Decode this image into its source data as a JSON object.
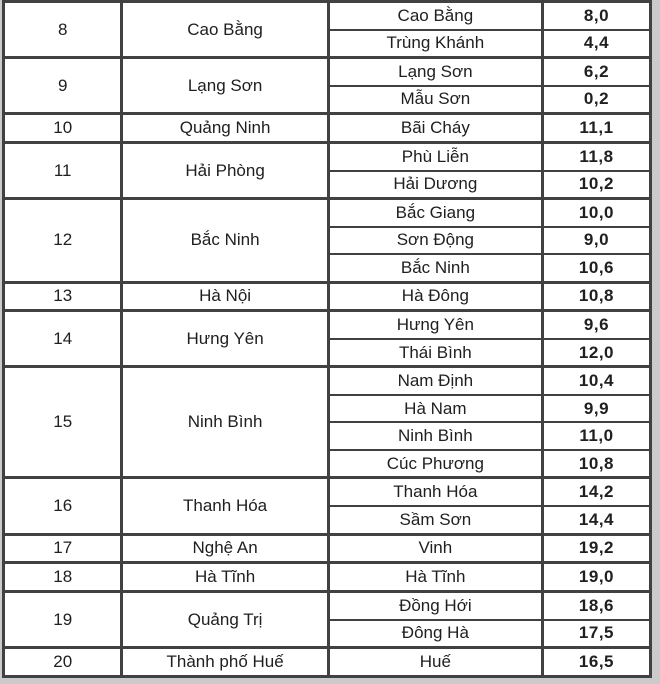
{
  "colors": {
    "border": "#414141",
    "cell_background": "#ffffff",
    "page_background": "#cbcbcb",
    "text": "#202020"
  },
  "chart_data": {
    "type": "table",
    "grid": true,
    "decimal_separator": ",",
    "provinces": [
      {
        "no": "8",
        "name": "Cao Bằng",
        "stations": [
          {
            "name": "Cao Bằng",
            "value": "8,0"
          },
          {
            "name": "Trùng Khánh",
            "value": "4,4"
          }
        ]
      },
      {
        "no": "9",
        "name": "Lạng Sơn",
        "stations": [
          {
            "name": "Lạng Sơn",
            "value": "6,2"
          },
          {
            "name": "Mẫu Sơn",
            "value": "0,2"
          }
        ]
      },
      {
        "no": "10",
        "name": "Quảng Ninh",
        "stations": [
          {
            "name": "Bãi Cháy",
            "value": "11,1"
          }
        ]
      },
      {
        "no": "11",
        "name": "Hải Phòng",
        "stations": [
          {
            "name": "Phù Liễn",
            "value": "11,8"
          },
          {
            "name": "Hải Dương",
            "value": "10,2"
          }
        ]
      },
      {
        "no": "12",
        "name": "Bắc Ninh",
        "stations": [
          {
            "name": "Bắc Giang",
            "value": "10,0"
          },
          {
            "name": "Sơn Động",
            "value": "9,0"
          },
          {
            "name": "Bắc Ninh",
            "value": "10,6"
          }
        ]
      },
      {
        "no": "13",
        "name": "Hà Nội",
        "stations": [
          {
            "name": "Hà Đông",
            "value": "10,8"
          }
        ]
      },
      {
        "no": "14",
        "name": "Hưng Yên",
        "stations": [
          {
            "name": "Hưng Yên",
            "value": "9,6"
          },
          {
            "name": "Thái Bình",
            "value": "12,0"
          }
        ]
      },
      {
        "no": "15",
        "name": "Ninh Bình",
        "stations": [
          {
            "name": "Nam Định",
            "value": "10,4"
          },
          {
            "name": "Hà Nam",
            "value": "9,9"
          },
          {
            "name": "Ninh Bình",
            "value": "11,0"
          },
          {
            "name": "Cúc Phương",
            "value": "10,8"
          }
        ]
      },
      {
        "no": "16",
        "name": "Thanh Hóa",
        "stations": [
          {
            "name": "Thanh Hóa",
            "value": "14,2"
          },
          {
            "name": "Sầm Sơn",
            "value": "14,4"
          }
        ]
      },
      {
        "no": "17",
        "name": "Nghệ An",
        "stations": [
          {
            "name": "Vinh",
            "value": "19,2"
          }
        ]
      },
      {
        "no": "18",
        "name": "Hà Tĩnh",
        "stations": [
          {
            "name": "Hà Tĩnh",
            "value": "19,0"
          }
        ]
      },
      {
        "no": "19",
        "name": "Quảng Trị",
        "stations": [
          {
            "name": "Đồng Hới",
            "value": "18,6"
          },
          {
            "name": "Đông Hà",
            "value": "17,5"
          }
        ]
      },
      {
        "no": "20",
        "name": "Thành phố Huế",
        "stations": [
          {
            "name": "Huế",
            "value": "16,5"
          }
        ]
      }
    ]
  }
}
